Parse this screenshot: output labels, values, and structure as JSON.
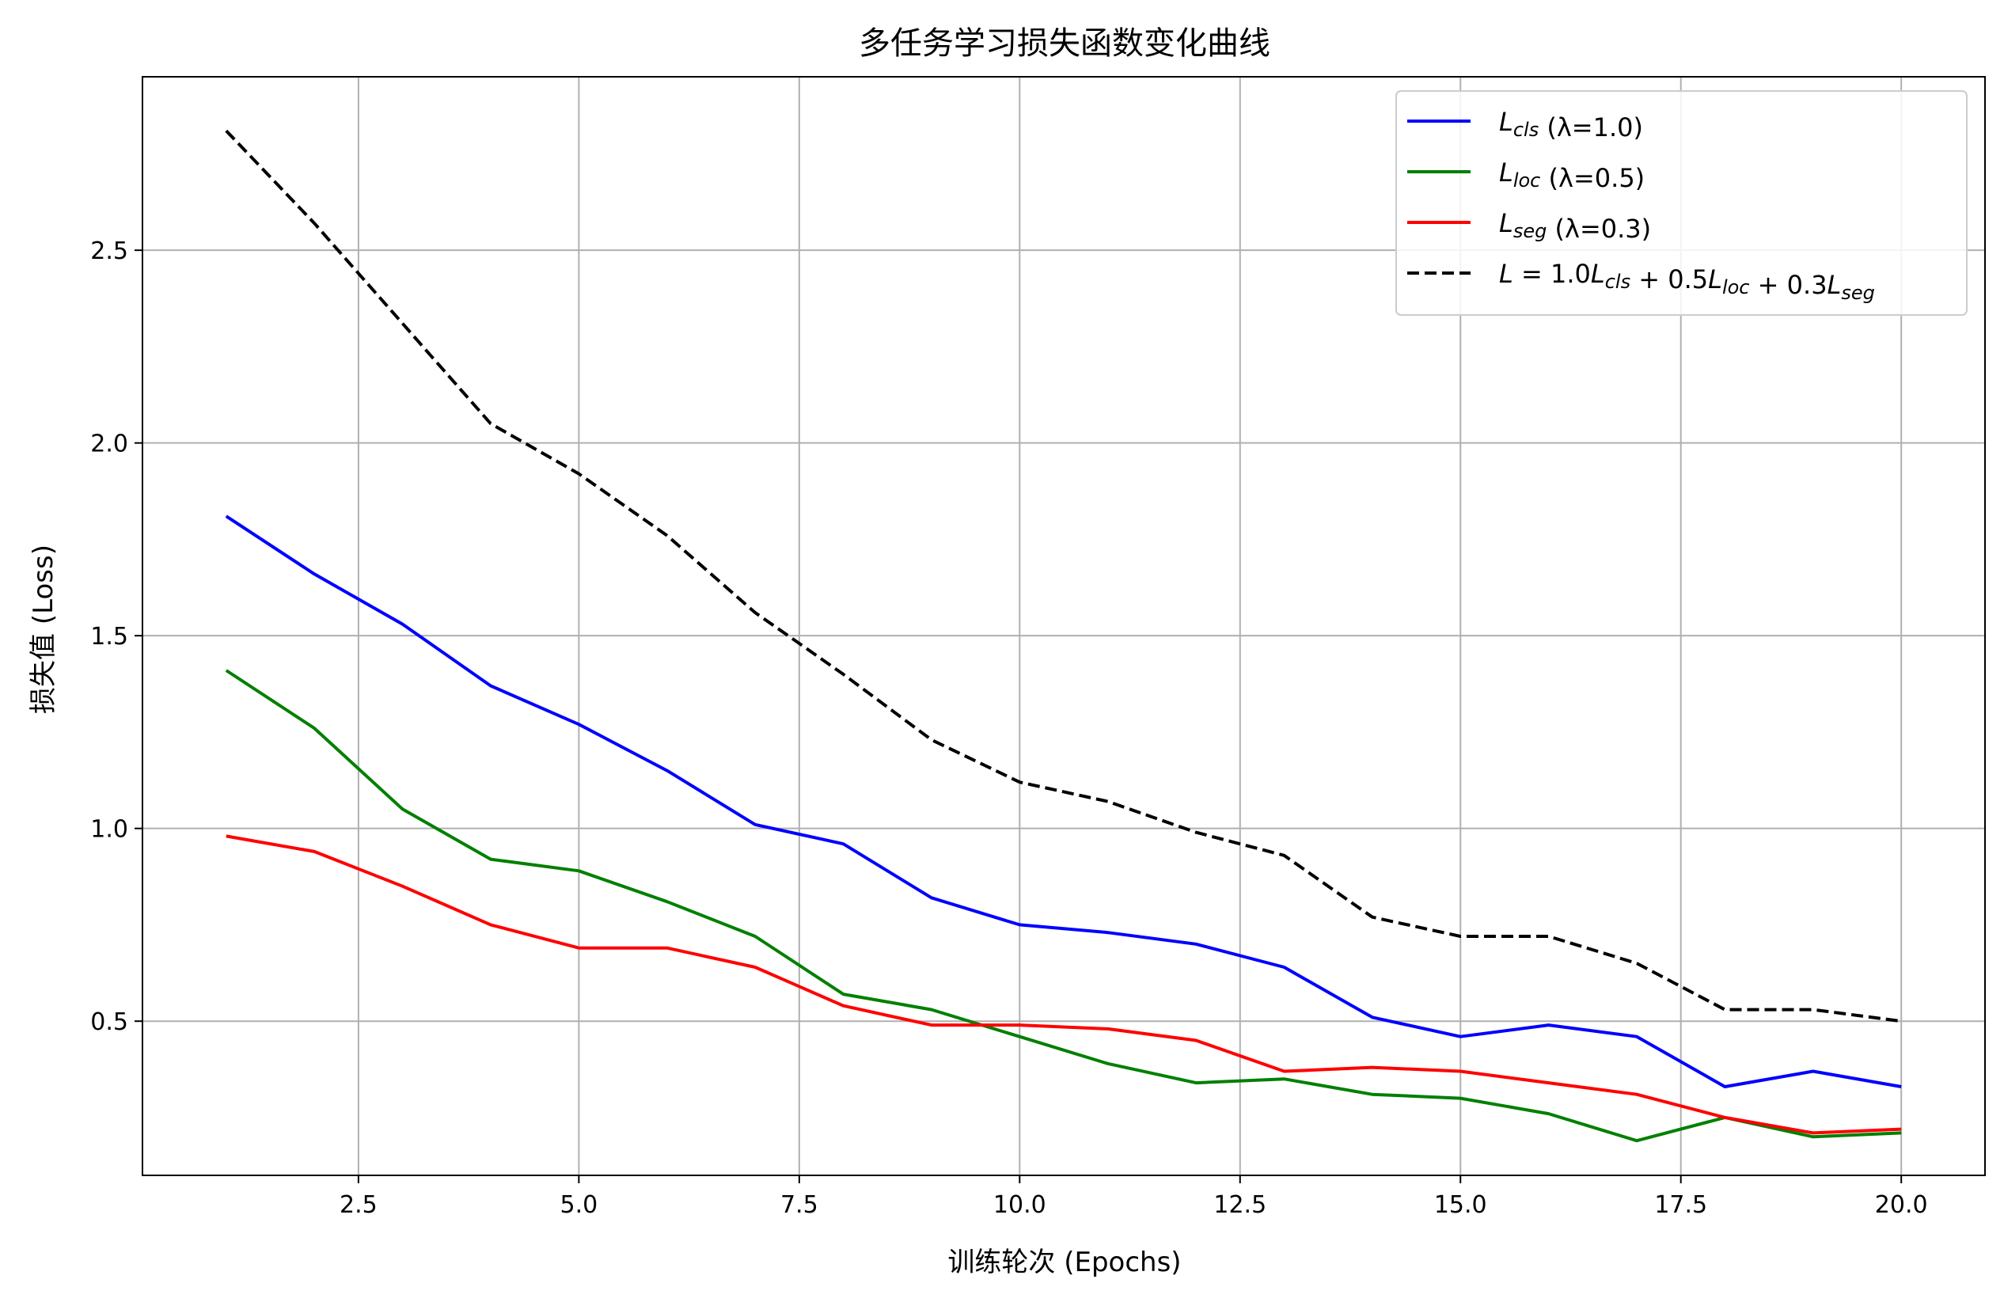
{
  "chart_data": {
    "type": "line",
    "title": "多任务学习损失函数变化曲线",
    "xlabel": "训练轮次 (Epochs)",
    "ylabel": "损失值 (Loss)",
    "xlim": [
      0.05,
      20.95
    ],
    "ylim": [
      0.1,
      2.95
    ],
    "xticks": [
      2.5,
      5.0,
      7.5,
      10.0,
      12.5,
      15.0,
      17.5,
      20.0
    ],
    "xtick_labels": [
      "2.5",
      "5.0",
      "7.5",
      "10.0",
      "12.5",
      "15.0",
      "17.5",
      "20.0"
    ],
    "yticks": [
      0.5,
      1.0,
      1.5,
      2.0,
      2.5
    ],
    "ytick_labels": [
      "0.5",
      "1.0",
      "1.5",
      "2.0",
      "2.5"
    ],
    "grid": true,
    "legend_position": "top-right",
    "x": [
      1,
      2,
      3,
      4,
      5,
      6,
      7,
      8,
      9,
      10,
      11,
      12,
      13,
      14,
      15,
      16,
      17,
      18,
      19,
      20
    ],
    "series": [
      {
        "legend_parts": [
          [
            "L",
            "i"
          ],
          [
            "cls",
            "is"
          ],
          [
            " (λ=1.0)",
            "n"
          ]
        ],
        "color": "#0000ff",
        "dash": "solid",
        "values": [
          1.81,
          1.66,
          1.53,
          1.37,
          1.27,
          1.15,
          1.01,
          0.96,
          0.82,
          0.75,
          0.73,
          0.7,
          0.64,
          0.51,
          0.46,
          0.49,
          0.46,
          0.33,
          0.37,
          0.33
        ]
      },
      {
        "legend_parts": [
          [
            "L",
            "i"
          ],
          [
            "loc",
            "is"
          ],
          [
            " (λ=0.5)",
            "n"
          ]
        ],
        "color": "#008000",
        "dash": "solid",
        "values": [
          1.41,
          1.26,
          1.05,
          0.92,
          0.89,
          0.81,
          0.72,
          0.57,
          0.53,
          0.46,
          0.39,
          0.34,
          0.35,
          0.31,
          0.3,
          0.26,
          0.19,
          0.25,
          0.2,
          0.21
        ]
      },
      {
        "legend_parts": [
          [
            "L",
            "i"
          ],
          [
            "seg",
            "is"
          ],
          [
            " (λ=0.3)",
            "n"
          ]
        ],
        "color": "#ff0000",
        "dash": "solid",
        "values": [
          0.98,
          0.94,
          0.85,
          0.75,
          0.69,
          0.69,
          0.64,
          0.54,
          0.49,
          0.49,
          0.48,
          0.45,
          0.37,
          0.38,
          0.37,
          0.34,
          0.31,
          0.25,
          0.21,
          0.22
        ]
      },
      {
        "legend_parts": [
          [
            "L",
            "i"
          ],
          [
            " = 1.0",
            "n"
          ],
          [
            "L",
            "i"
          ],
          [
            "cls",
            "is"
          ],
          [
            " + 0.5",
            "n"
          ],
          [
            "L",
            "i"
          ],
          [
            "loc",
            "is"
          ],
          [
            " + 0.3",
            "n"
          ],
          [
            "L",
            "i"
          ],
          [
            "seg",
            "is"
          ]
        ],
        "color": "#000000",
        "dash": "dashed",
        "values": [
          2.81,
          2.57,
          2.31,
          2.05,
          1.92,
          1.76,
          1.56,
          1.4,
          1.23,
          1.12,
          1.07,
          0.99,
          0.93,
          0.77,
          0.72,
          0.72,
          0.65,
          0.53,
          0.53,
          0.5
        ]
      }
    ]
  }
}
